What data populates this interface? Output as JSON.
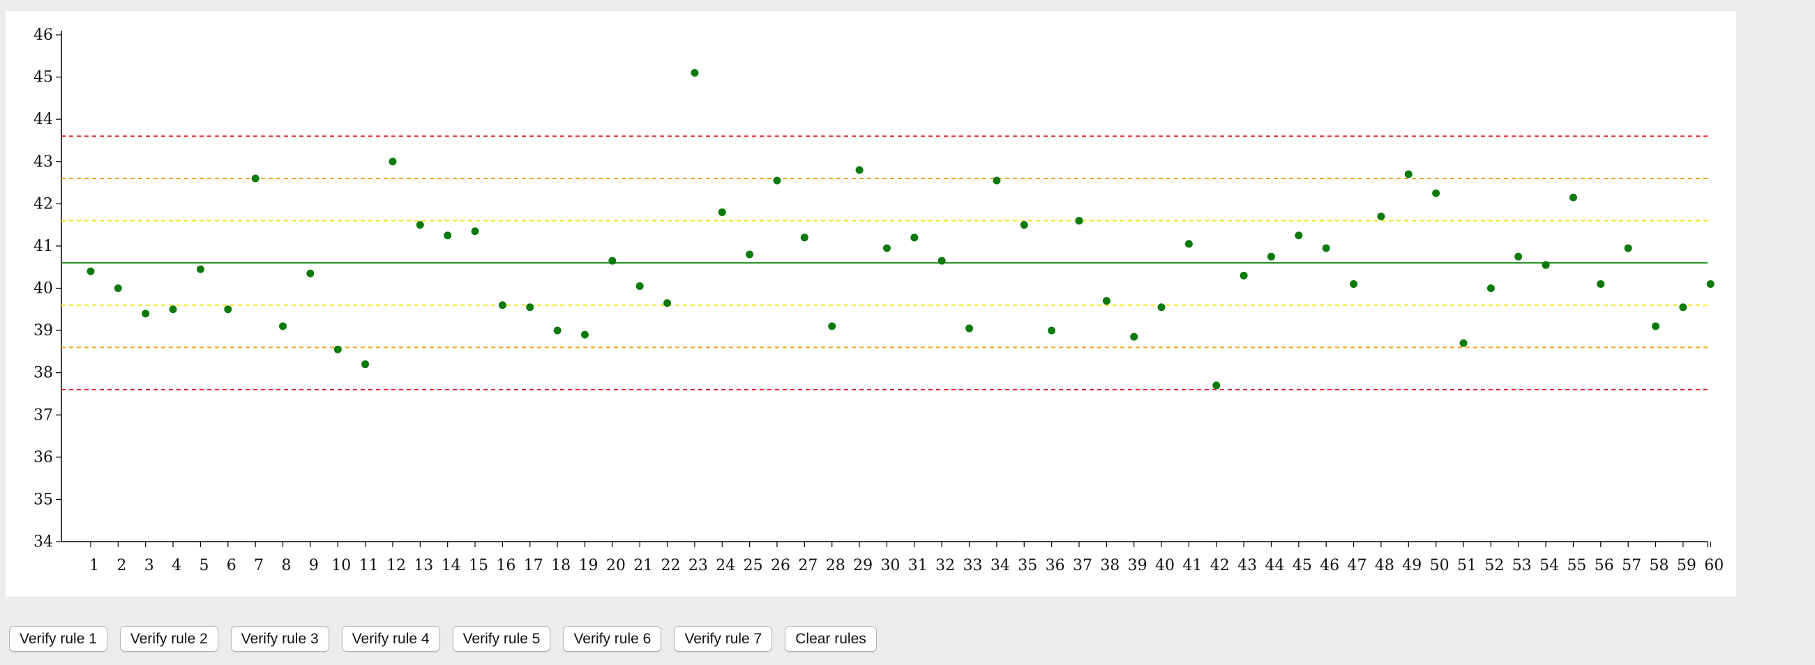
{
  "chart_data": {
    "type": "scatter",
    "x": [
      1,
      2,
      3,
      4,
      5,
      6,
      7,
      8,
      9,
      10,
      11,
      12,
      13,
      14,
      15,
      16,
      17,
      18,
      19,
      20,
      21,
      22,
      23,
      24,
      25,
      26,
      27,
      28,
      29,
      30,
      31,
      32,
      33,
      34,
      35,
      36,
      37,
      38,
      39,
      40,
      41,
      42,
      43,
      44,
      45,
      46,
      47,
      48,
      49,
      50,
      51,
      52,
      53,
      54,
      55,
      56,
      57,
      58,
      59,
      60
    ],
    "values": [
      40.4,
      40.0,
      39.4,
      39.5,
      40.45,
      39.5,
      42.6,
      39.1,
      40.35,
      38.55,
      38.2,
      43.0,
      41.5,
      41.25,
      41.35,
      39.6,
      39.55,
      39.0,
      38.9,
      40.65,
      40.05,
      39.65,
      45.1,
      41.8,
      40.8,
      42.55,
      41.2,
      39.1,
      42.8,
      40.95,
      41.2,
      40.65,
      39.05,
      42.55,
      41.5,
      39.0,
      41.6,
      39.7,
      38.85,
      39.55,
      41.05,
      37.7,
      40.3,
      40.75,
      41.25,
      40.95,
      40.1,
      41.7,
      42.7,
      42.25,
      38.7,
      40.0,
      40.75,
      40.55,
      42.15,
      40.1,
      40.95,
      39.1,
      39.55,
      40.1
    ],
    "ylim": [
      34,
      46
    ],
    "yticks": [
      "34",
      "35",
      "36",
      "37",
      "38",
      "39",
      "40",
      "41",
      "42",
      "43",
      "44",
      "45",
      "46"
    ],
    "xticks": [
      "1",
      "2",
      "3",
      "4",
      "5",
      "6",
      "7",
      "8",
      "9",
      "10",
      "11",
      "12",
      "13",
      "14",
      "15",
      "16",
      "17",
      "18",
      "19",
      "20",
      "21",
      "22",
      "23",
      "24",
      "25",
      "26",
      "27",
      "28",
      "29",
      "30",
      "31",
      "32",
      "33",
      "34",
      "35",
      "36",
      "37",
      "38",
      "39",
      "40",
      "41",
      "42",
      "43",
      "44",
      "45",
      "46",
      "47",
      "48",
      "49",
      "50",
      "51",
      "52",
      "53",
      "54",
      "55",
      "56",
      "57",
      "58",
      "59",
      "60"
    ],
    "center_line": 40.6,
    "sigma_lines": [
      {
        "level": "1-sigma",
        "values": [
          39.6,
          41.6
        ],
        "color": "#f2e51c"
      },
      {
        "level": "2-sigma",
        "values": [
          38.6,
          42.6
        ],
        "color": "#f2a51c"
      },
      {
        "level": "3-sigma",
        "values": [
          37.6,
          43.6
        ],
        "color": "#e8202a"
      }
    ],
    "point_color": "#0a7a0a",
    "center_color": "#1a8a1a",
    "grid": false,
    "legend": "none"
  },
  "buttons": [
    "Verify rule 1",
    "Verify rule 2",
    "Verify rule 3",
    "Verify rule 4",
    "Verify rule 5",
    "Verify rule 6",
    "Verify rule 7",
    "Clear rules"
  ]
}
